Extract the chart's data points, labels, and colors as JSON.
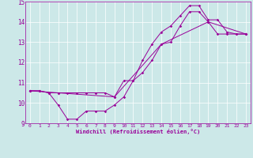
{
  "xlabel": "Windchill (Refroidissement éolien,°C)",
  "bg_color": "#cce8e8",
  "line_color": "#990099",
  "grid_color": "#ffffff",
  "xlim": [
    -0.5,
    23.5
  ],
  "ylim": [
    9,
    15
  ],
  "yticks": [
    9,
    10,
    11,
    12,
    13,
    14,
    15
  ],
  "xticks": [
    0,
    1,
    2,
    3,
    4,
    5,
    6,
    7,
    8,
    9,
    10,
    11,
    12,
    13,
    14,
    15,
    16,
    17,
    18,
    19,
    20,
    21,
    22,
    23
  ],
  "line1_x": [
    0,
    1,
    2,
    3,
    4,
    5,
    6,
    7,
    8,
    9,
    10,
    11,
    12,
    13,
    14,
    15,
    16,
    17,
    18,
    19,
    20,
    21,
    22,
    23
  ],
  "line1_y": [
    10.6,
    10.6,
    10.5,
    9.9,
    9.2,
    9.2,
    9.6,
    9.6,
    9.6,
    9.9,
    10.3,
    11.1,
    12.1,
    12.9,
    13.5,
    13.8,
    14.3,
    14.8,
    14.8,
    14.1,
    14.1,
    13.5,
    13.4,
    13.4
  ],
  "line2_x": [
    0,
    1,
    2,
    3,
    4,
    5,
    6,
    7,
    8,
    9,
    10,
    11,
    12,
    13,
    14,
    15,
    16,
    17,
    18,
    19,
    20,
    21,
    22,
    23
  ],
  "line2_y": [
    10.6,
    10.6,
    10.5,
    10.5,
    10.5,
    10.5,
    10.5,
    10.5,
    10.5,
    10.3,
    11.1,
    11.1,
    11.5,
    12.1,
    12.9,
    13.0,
    13.8,
    14.5,
    14.5,
    14.0,
    13.4,
    13.4,
    13.4,
    13.4
  ],
  "line3_x": [
    0,
    3,
    9,
    14,
    19,
    23
  ],
  "line3_y": [
    10.6,
    10.5,
    10.3,
    12.9,
    14.0,
    13.4
  ]
}
